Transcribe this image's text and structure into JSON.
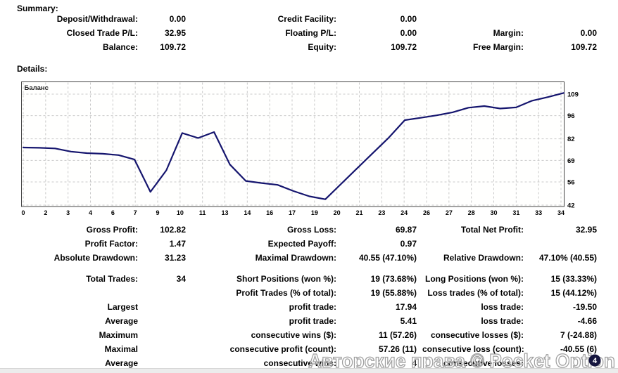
{
  "colors": {
    "line": "#15156e",
    "grid": "#c9c9c9",
    "plot_border": "#444444",
    "watermark_stroke": "#a0a0a0",
    "badge_fill": "#16163f",
    "badge_text": "#ffffff",
    "text": "#000000"
  },
  "summary": {
    "heading": "Summary:",
    "rows": [
      {
        "cells": [
          {
            "label": "Deposit/Withdrawal:",
            "value": "0.00"
          },
          {
            "label": "Credit Facility:",
            "value": "0.00"
          },
          {
            "label": "",
            "value": ""
          }
        ]
      },
      {
        "cells": [
          {
            "label": "Closed Trade P/L:",
            "value": "32.95"
          },
          {
            "label": "Floating P/L:",
            "value": "0.00"
          },
          {
            "label": "Margin:",
            "value": "0.00"
          }
        ]
      },
      {
        "cells": [
          {
            "label": "Balance:",
            "value": "109.72"
          },
          {
            "label": "Equity:",
            "value": "109.72"
          },
          {
            "label": "Free Margin:",
            "value": "109.72"
          }
        ]
      }
    ]
  },
  "details": {
    "heading": "Details:",
    "blocks": [
      {
        "rows": [
          {
            "cells": [
              {
                "label": "Gross Profit:",
                "value": "102.82"
              },
              {
                "label": "Gross Loss:",
                "value": "69.87"
              },
              {
                "label": "Total Net Profit:",
                "value": "32.95"
              }
            ]
          },
          {
            "cells": [
              {
                "label": "Profit Factor:",
                "value": "1.47"
              },
              {
                "label": "Expected Payoff:",
                "value": "0.97"
              },
              {
                "label": "",
                "value": ""
              }
            ]
          },
          {
            "cells": [
              {
                "label": "Absolute Drawdown:",
                "value": "31.23"
              },
              {
                "label": "Maximal Drawdown:",
                "value": "40.55 (47.10%)"
              },
              {
                "label": "Relative Drawdown:",
                "value": "47.10% (40.55)"
              }
            ]
          }
        ]
      },
      {
        "rows": [
          {
            "cells": [
              {
                "label": "Total Trades:",
                "value": "34"
              },
              {
                "label": "Short Positions (won %):",
                "value": "19 (73.68%)"
              },
              {
                "label": "Long Positions (won %):",
                "value": "15 (33.33%)"
              }
            ]
          },
          {
            "cells": [
              {
                "label": "",
                "value": ""
              },
              {
                "label": "Profit Trades (% of total):",
                "value": "19 (55.88%)"
              },
              {
                "label": "Loss trades (% of total):",
                "value": "15 (44.12%)"
              }
            ]
          }
        ]
      },
      {
        "rows": [
          {
            "cells": [
              {
                "label": "Largest",
                "value": ""
              },
              {
                "label": "profit trade:",
                "value": "17.94"
              },
              {
                "label": "loss trade:",
                "value": "-19.50"
              }
            ]
          },
          {
            "cells": [
              {
                "label": "Average",
                "value": ""
              },
              {
                "label": "profit trade:",
                "value": "5.41"
              },
              {
                "label": "loss trade:",
                "value": "-4.66"
              }
            ]
          },
          {
            "cells": [
              {
                "label": "Maximum",
                "value": ""
              },
              {
                "label": "consecutive wins ($):",
                "value": "11 (57.26)"
              },
              {
                "label": "consecutive losses ($):",
                "value": "7 (-24.88)"
              }
            ]
          },
          {
            "cells": [
              {
                "label": "Maximal",
                "value": ""
              },
              {
                "label": "consecutive profit (count):",
                "value": "57.26 (11)"
              },
              {
                "label": "consecutive loss (count):",
                "value": "-40.55 (6)"
              }
            ]
          },
          {
            "cells": [
              {
                "label": "Average",
                "value": ""
              },
              {
                "label": "consecutive wins:",
                "value": "4"
              },
              {
                "label": "consecutive losses:",
                "value": "4"
              }
            ]
          }
        ]
      }
    ]
  },
  "chart_data": {
    "type": "line",
    "title": "Баланс",
    "xlabel": "",
    "ylabel": "",
    "x_description": "trade index 0-34, points evenly spaced",
    "x": [
      0,
      1,
      2,
      3,
      4,
      5,
      6,
      7,
      8,
      9,
      10,
      11,
      12,
      13,
      14,
      15,
      16,
      17,
      18,
      19,
      20,
      21,
      22,
      23,
      24,
      25,
      26,
      27,
      28,
      29,
      30,
      31,
      32,
      33,
      34
    ],
    "series": [
      {
        "name": "Баланс",
        "values": [
          76.77,
          76.6,
          76.2,
          74.3,
          73.4,
          73.0,
          72.2,
          69.5,
          50.0,
          63.0,
          85.5,
          82.5,
          86.09,
          66.5,
          56.6,
          55.3,
          54.2,
          50.5,
          47.3,
          45.54,
          54.9,
          64.2,
          73.5,
          82.8,
          93.3,
          94.7,
          96.2,
          98.0,
          100.8,
          101.8,
          100.3,
          101.0,
          105.0,
          107.2,
          109.72
        ]
      }
    ],
    "x_tick_labels": [
      "0",
      "2",
      "3",
      "4",
      "6",
      "7",
      "9",
      "10",
      "11",
      "13",
      "14",
      "16",
      "17",
      "19",
      "20",
      "21",
      "23",
      "24",
      "26",
      "27",
      "28",
      "30",
      "31",
      "33",
      "34"
    ],
    "y_ticks": [
      109,
      96,
      82,
      69,
      56,
      42
    ],
    "ylim": [
      40.5,
      116.1
    ],
    "grid": "dashed",
    "legend_position": "label inside top-left"
  },
  "watermark": {
    "text": "Авторские права © Pocket Option",
    "badge_value": "4"
  }
}
